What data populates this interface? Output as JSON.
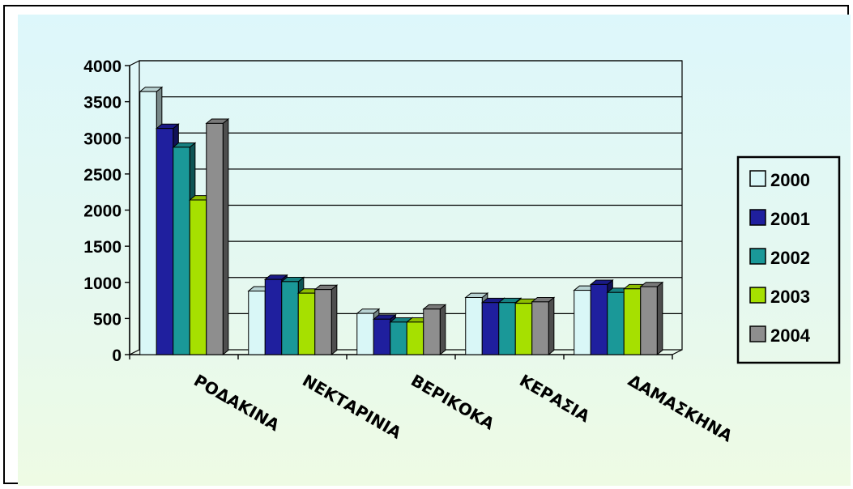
{
  "chart_data": {
    "type": "bar",
    "categories": [
      "ΡΟΔΑΚΙΝΑ",
      "ΝΕΚΤΑΡΙΝΙΑ",
      "ΒΕΡΙΚΟΚΑ",
      "ΚΕΡΑΣΙΑ",
      "ΔΑΜΑΣΚΗΝΑ"
    ],
    "series": [
      {
        "name": "2000",
        "color": "#d9f7f7",
        "values": [
          3640,
          880,
          570,
          790,
          890
        ]
      },
      {
        "name": "2001",
        "color": "#1f1f9e",
        "values": [
          3130,
          1040,
          490,
          720,
          970
        ]
      },
      {
        "name": "2002",
        "color": "#1a9898",
        "values": [
          2870,
          1010,
          450,
          720,
          860
        ]
      },
      {
        "name": "2003",
        "color": "#a6e000",
        "values": [
          2140,
          850,
          450,
          710,
          910
        ]
      },
      {
        "name": "2004",
        "color": "#8e8e8e",
        "values": [
          3200,
          900,
          630,
          730,
          940
        ]
      }
    ],
    "ylim": [
      0,
      4000
    ],
    "yticks": [
      "0",
      "500",
      "1000",
      "1500",
      "2000",
      "2500",
      "3000",
      "3500",
      "4000"
    ],
    "grid": true,
    "legend_position": "right",
    "style": "3d-clustered-column"
  }
}
